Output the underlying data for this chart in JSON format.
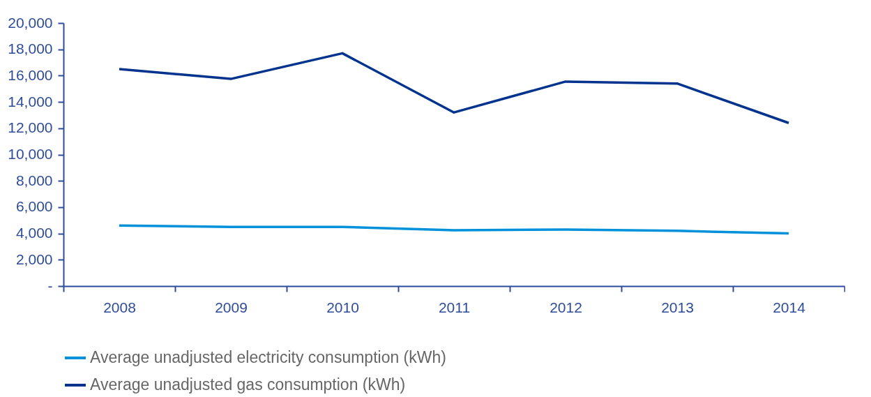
{
  "chart_data": {
    "type": "line",
    "categories": [
      "2008",
      "2009",
      "2010",
      "2011",
      "2012",
      "2013",
      "2014"
    ],
    "series": [
      {
        "name": "Average unadjusted electricity consumption (kWh)",
        "color": "#0091da",
        "values": [
          4600,
          4500,
          4500,
          4250,
          4300,
          4200,
          4000
        ]
      },
      {
        "name": "Average unadjusted gas consumption (kWh)",
        "color": "#00338d",
        "values": [
          16500,
          15750,
          17700,
          13200,
          15550,
          15400,
          12400
        ]
      }
    ],
    "ylim": [
      0,
      20000
    ],
    "yticks": [
      {
        "value": 0,
        "label": "-"
      },
      {
        "value": 2000,
        "label": "2,000"
      },
      {
        "value": 4000,
        "label": "4,000"
      },
      {
        "value": 6000,
        "label": "6,000"
      },
      {
        "value": 8000,
        "label": "8,000"
      },
      {
        "value": 10000,
        "label": "10,000"
      },
      {
        "value": 12000,
        "label": "12,000"
      },
      {
        "value": 14000,
        "label": "14,000"
      },
      {
        "value": 16000,
        "label": "16,000"
      },
      {
        "value": 18000,
        "label": "18,000"
      },
      {
        "value": 20000,
        "label": "20,000"
      }
    ],
    "grid": false,
    "legend": "bottom",
    "marker": "none",
    "line_style": "solid"
  }
}
